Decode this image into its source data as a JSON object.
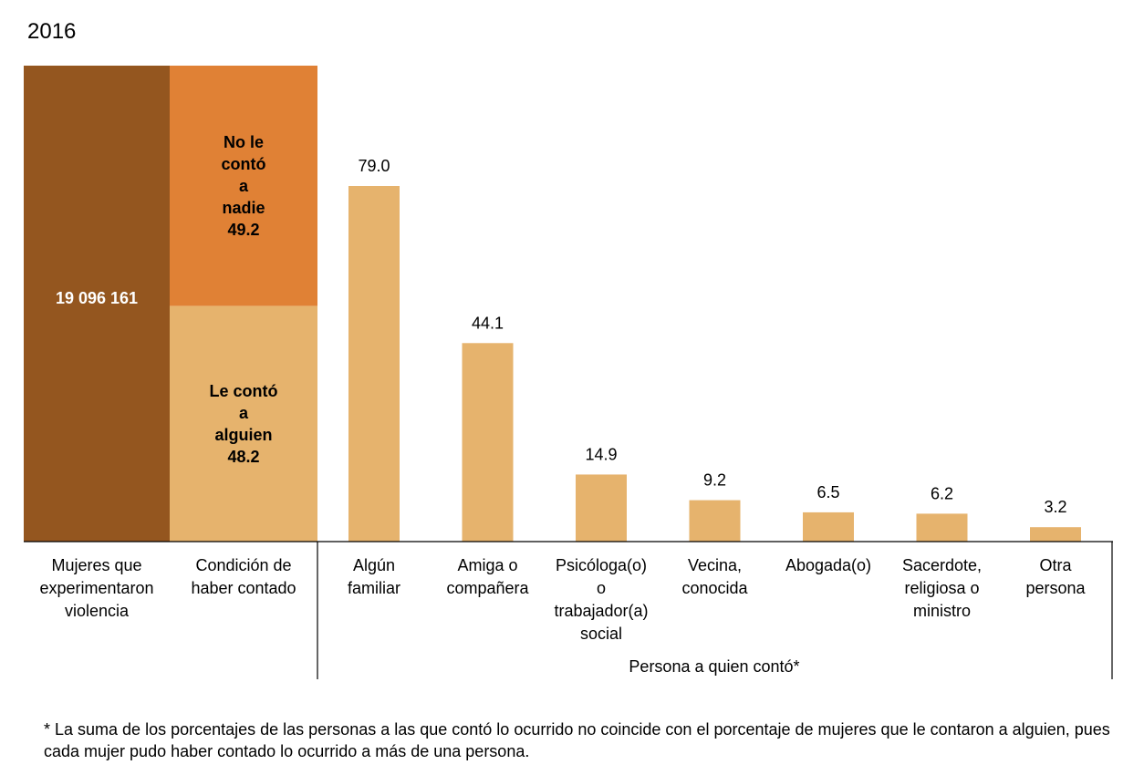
{
  "year": "2016",
  "chart_data": {
    "type": "bar",
    "total": {
      "value": "19 096 161",
      "label_lines": [
        "Mujeres que",
        "experimentaron",
        "violencia"
      ],
      "color": "#94561f"
    },
    "condition": {
      "label_lines": [
        "Condición de",
        "haber contado"
      ],
      "segments": [
        {
          "text_lines": [
            "No le",
            "contó",
            "a",
            "nadie",
            "49.2"
          ],
          "value": 49.2,
          "color": "#e08135"
        },
        {
          "text_lines": [
            "Le contó",
            "a",
            "alguien",
            "48.2"
          ],
          "value": 48.2,
          "color": "#e6b36d"
        }
      ]
    },
    "categories": [
      [
        "Algún",
        "familiar"
      ],
      [
        "Amiga o",
        "compañera"
      ],
      [
        "Psicóloga(o)",
        "o",
        "trabajador(a)",
        "social"
      ],
      [
        "Vecina,",
        "conocida"
      ],
      [
        "Abogada(o)"
      ],
      [
        "Sacerdote,",
        "religiosa o",
        "ministro"
      ],
      [
        "Otra",
        "persona"
      ]
    ],
    "values": [
      79.0,
      44.1,
      14.9,
      9.2,
      6.5,
      6.2,
      3.2
    ],
    "value_labels": [
      "79.0",
      "44.1",
      "14.9",
      "9.2",
      "6.5",
      "6.2",
      "3.2"
    ],
    "bar_color": "#e6b36d",
    "group_label": "Persona a quien contó*"
  },
  "footnote": "* La suma de los porcentajes de las personas a las que contó lo ocurrido no coincide con el porcentaje de mujeres que le contaron a alguien, pues cada mujer pudo haber contado lo ocurrido a más de una persona."
}
